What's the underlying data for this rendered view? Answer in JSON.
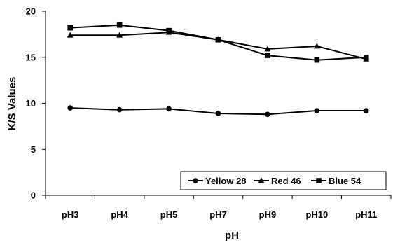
{
  "chart_data": {
    "type": "line",
    "title": "",
    "xlabel": "pH",
    "ylabel": "K/S Values",
    "ylim": [
      0,
      20
    ],
    "yticks": [
      0,
      5,
      10,
      15,
      20
    ],
    "categories": [
      "pH3",
      "pH4",
      "pH5",
      "pH7",
      "pH9",
      "pH10",
      "pH11"
    ],
    "grid": false,
    "legend_position": "bottom-right",
    "series": [
      {
        "name": "Yellow 28",
        "marker": "circle",
        "color": "#000000",
        "values": [
          9.5,
          9.3,
          9.4,
          8.9,
          8.8,
          9.2,
          9.2
        ]
      },
      {
        "name": "Red 46",
        "marker": "triangle",
        "color": "#000000",
        "values": [
          17.4,
          17.4,
          17.7,
          16.9,
          15.9,
          16.2,
          14.8
        ]
      },
      {
        "name": "Blue 54",
        "marker": "square",
        "color": "#000000",
        "values": [
          18.2,
          18.5,
          17.9,
          16.9,
          15.2,
          14.7,
          15.0
        ]
      }
    ]
  }
}
